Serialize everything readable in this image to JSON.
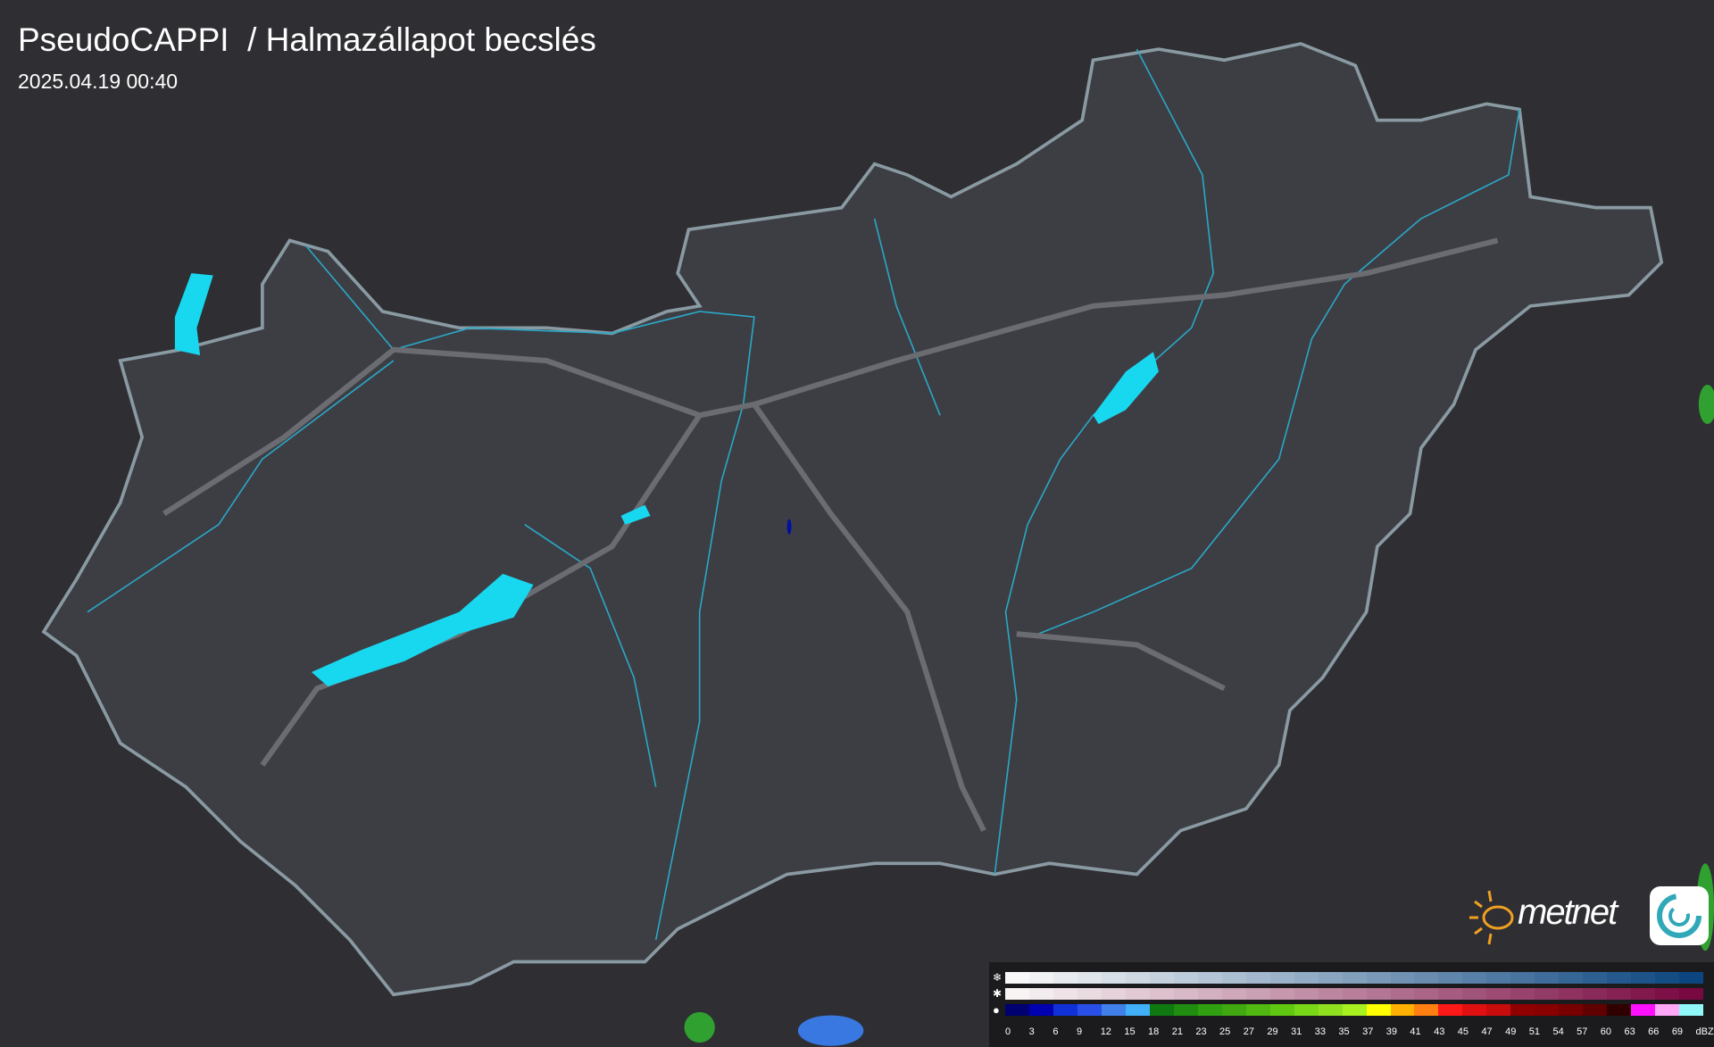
{
  "header": {
    "title": "PseudoCAPPI  / Halmazállapot becslés",
    "timestamp": "2025.04.19 00:40"
  },
  "map": {
    "background": "#2e2e33",
    "country_fill": "#3d3e44",
    "border_color": "#8a9aa2",
    "river_color": "#2aa8c8",
    "lake_color": "#18d8f0"
  },
  "legend": {
    "rows": [
      {
        "name": "snow",
        "icon": "snowflake-icon",
        "glyph": "❄",
        "from": "#f8f8f8",
        "to": "#0c4680"
      },
      {
        "name": "mixed",
        "icon": "sleet-icon",
        "glyph": "✱",
        "from": "#f8f4f4",
        "to": "#780840"
      },
      {
        "name": "rain",
        "icon": "raindrop-icon",
        "glyph": "💧",
        "colors": [
          "#000070",
          "#0000b0",
          "#1030d8",
          "#2850e8",
          "#4080e8",
          "#40b0f8",
          "#107810",
          "#208c10",
          "#30a010",
          "#40a810",
          "#50b810",
          "#60c810",
          "#78d818",
          "#90e020",
          "#a8f020",
          "#ffff00",
          "#ffb000",
          "#ff8010",
          "#ff1818",
          "#e01010",
          "#c80c0c",
          "#900000",
          "#880000",
          "#780000",
          "#600000",
          "#300000",
          "#ff10ff",
          "#ffa8f8",
          "#90f8f8"
        ]
      }
    ],
    "labels": [
      "0",
      "3",
      "6",
      "9",
      "12",
      "15",
      "18",
      "21",
      "23",
      "25",
      "27",
      "29",
      "31",
      "33",
      "35",
      "37",
      "39",
      "41",
      "43",
      "45",
      "47",
      "49",
      "51",
      "54",
      "57",
      "60",
      "63",
      "66",
      "69"
    ],
    "unit": "dBZ"
  },
  "logo": {
    "text": "metnet",
    "sun_color": "#f0a020",
    "accent": "#30a8b8"
  }
}
